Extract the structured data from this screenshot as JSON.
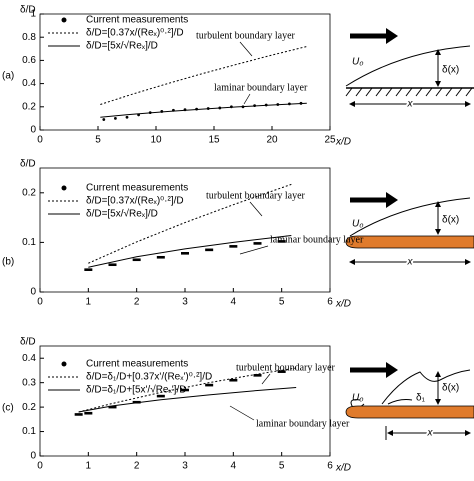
{
  "chart_data": [
    {
      "type": "line",
      "panel": "(a)",
      "xlabel": "x/D",
      "ylabel": "δ/D",
      "color": "#000000",
      "xlim": [
        0,
        25
      ],
      "xticks": [
        0,
        5,
        10,
        15,
        20,
        25
      ],
      "ylim": [
        0,
        1
      ],
      "yticks": [
        0,
        0.2,
        0.4,
        0.6,
        0.8,
        1
      ],
      "series": [
        {
          "name": "Current measurements",
          "type": "scatter",
          "marker": "dot",
          "x": [
            5.5,
            6.5,
            7.5,
            8.5,
            9.5,
            10.5,
            11.5,
            12.5,
            13.5,
            14.5,
            15.5,
            16.5,
            17.5,
            18.5,
            19.5,
            20.5,
            21.5,
            22.5
          ],
          "values": [
            0.09,
            0.1,
            0.11,
            0.13,
            0.15,
            0.16,
            0.17,
            0.175,
            0.18,
            0.185,
            0.19,
            0.2,
            0.2,
            0.21,
            0.215,
            0.22,
            0.225,
            0.23
          ]
        },
        {
          "name": "δ/D=[0.37x/(Reₓ)⁰·²]/D",
          "type": "line",
          "dash": true,
          "x": [
            5.2,
            8,
            11,
            14,
            17,
            20,
            23
          ],
          "values": [
            0.22,
            0.31,
            0.4,
            0.486,
            0.567,
            0.646,
            0.72
          ]
        },
        {
          "name": "δ/D=[5x/√Reₓ]/D",
          "type": "line",
          "dash": false,
          "x": [
            5.2,
            8,
            11,
            14,
            17,
            20,
            23
          ],
          "values": [
            0.11,
            0.136,
            0.16,
            0.18,
            0.199,
            0.215,
            0.231
          ]
        }
      ],
      "annotations": [
        "turbulent boundary layer",
        "laminar boundary layer"
      ]
    },
    {
      "type": "line",
      "panel": "(b)",
      "xlabel": "x/D",
      "ylabel": "δ/D",
      "color": "#000000",
      "xlim": [
        0,
        6
      ],
      "xticks": [
        0,
        1,
        2,
        3,
        4,
        5,
        6
      ],
      "ylim": [
        0,
        0.25
      ],
      "yticks": [
        0,
        0.1,
        0.2
      ],
      "series": [
        {
          "name": "Current measurements",
          "type": "scatter",
          "marker": "dash",
          "x": [
            1,
            1.5,
            2,
            2.5,
            3,
            3.5,
            4,
            4.5,
            5
          ],
          "values": [
            0.045,
            0.055,
            0.065,
            0.07,
            0.078,
            0.085,
            0.092,
            0.098,
            0.102
          ]
        },
        {
          "name": "δ/D=[0.37x/(Reₓ)⁰·²]/D",
          "type": "line",
          "dash": true,
          "x": [
            1,
            2,
            3,
            4,
            5.2
          ],
          "values": [
            0.058,
            0.101,
            0.14,
            0.176,
            0.217
          ]
        },
        {
          "name": "δ/D=[5x/√Reₓ]/D",
          "type": "line",
          "dash": false,
          "x": [
            1,
            2,
            3,
            4,
            5.2
          ],
          "values": [
            0.05,
            0.071,
            0.087,
            0.1,
            0.114
          ]
        }
      ],
      "annotations": [
        "turbulent boundary layer",
        "laminar boundary layer"
      ]
    },
    {
      "type": "line",
      "panel": "(c)",
      "xlabel": "x/D",
      "ylabel": "δ/D",
      "color": "#000000",
      "xlim": [
        0,
        6
      ],
      "xticks": [
        0,
        1,
        2,
        3,
        4,
        5,
        6
      ],
      "ylim": [
        0,
        0.45
      ],
      "yticks": [
        0,
        0.1,
        0.2,
        0.3,
        0.4
      ],
      "series": [
        {
          "name": "Current measurements",
          "type": "scatter",
          "marker": "dash",
          "x": [
            0.8,
            1,
            1.5,
            2,
            2.5,
            3,
            3.5,
            4,
            4.5,
            5
          ],
          "values": [
            0.17,
            0.175,
            0.2,
            0.22,
            0.245,
            0.27,
            0.29,
            0.31,
            0.33,
            0.345
          ]
        },
        {
          "name": "δ/D=δ₁/D+[0.37x'/(Reₓ')⁰·²]/D",
          "type": "line",
          "dash": true,
          "x": [
            0.8,
            1.5,
            2.5,
            3.5,
            4.5,
            5.3
          ],
          "values": [
            0.18,
            0.215,
            0.26,
            0.3,
            0.335,
            0.36
          ]
        },
        {
          "name": "δ/D=δ₁/D+[5x'/√Reₓ']/D",
          "type": "line",
          "dash": false,
          "x": [
            0.8,
            1.5,
            2.5,
            3.5,
            4.5,
            5.3
          ],
          "values": [
            0.18,
            0.205,
            0.23,
            0.25,
            0.268,
            0.28
          ]
        }
      ],
      "annotations": [
        "turbulent boundary layer",
        "laminar boundary layer"
      ]
    }
  ],
  "diagrams": [
    {
      "u": "U₀",
      "delta": "δ(x)",
      "x": "x"
    },
    {
      "u": "U₀",
      "delta": "δ(x)",
      "x": "x"
    },
    {
      "u": "U₀",
      "delta": "δ(x)",
      "x": "x",
      "delta1": "δ₁"
    }
  ]
}
